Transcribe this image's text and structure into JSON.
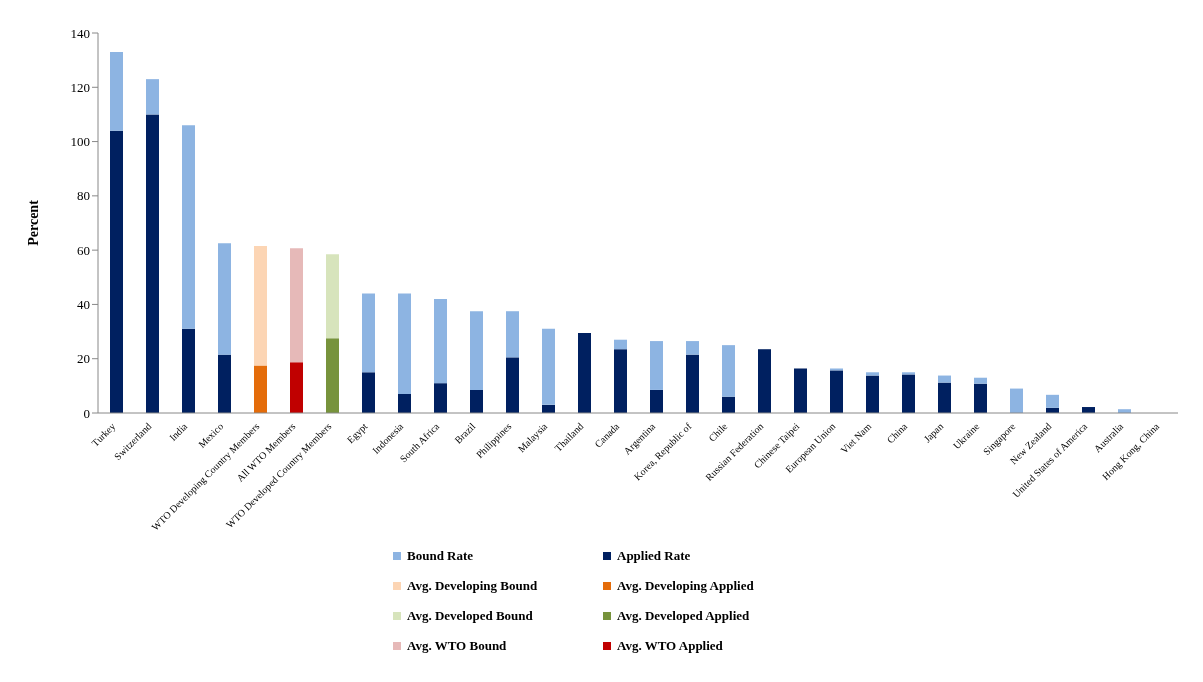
{
  "chart_data": {
    "type": "bar",
    "stacked": true,
    "ylabel": "Percent",
    "ylim": [
      0,
      140
    ],
    "yticks": [
      0,
      20,
      40,
      60,
      80,
      100,
      120,
      140
    ],
    "grid": false,
    "legend": "bottom",
    "categories": [
      "Turkey",
      "Switzerland",
      "India",
      "Mexico",
      "WTO Developing Country Members",
      "All WTO Members",
      "WTO Developed Country Members",
      "Egypt",
      "Indonesia",
      "South Africa",
      "Brazil",
      "Philippines",
      "Malaysia",
      "Thailand",
      "Canada",
      "Argentina",
      "Korea, Republic of",
      "Chile",
      "Russian Federation",
      "Chinese Taipei",
      "European Union",
      "Viet Nam",
      "China",
      "Japan",
      "Ukraine",
      "Singapore",
      "New Zealand",
      "United States of America",
      "Australia",
      "Hong Kong, China"
    ],
    "series": [
      {
        "name": "Applied Rate",
        "color": "#002060",
        "values": [
          104,
          110,
          31,
          21.5,
          null,
          null,
          null,
          15,
          7,
          11,
          8.5,
          20.5,
          3,
          29.5,
          23.5,
          8.5,
          21.5,
          6,
          23.5,
          16.4,
          15.7,
          13.8,
          14.2,
          11.2,
          10.8,
          0,
          1.9,
          2.2,
          0,
          0
        ]
      },
      {
        "name": "Bound Rate",
        "color": "#8db4e2",
        "values": [
          29,
          13,
          75,
          41,
          null,
          null,
          null,
          29,
          37,
          31,
          29,
          17,
          28,
          0,
          3.5,
          18,
          5,
          19,
          0,
          0,
          0.7,
          1.2,
          0.8,
          2.6,
          2.2,
          9,
          4.8,
          0,
          1.4,
          0
        ]
      },
      {
        "name": "Avg. Developing Applied",
        "color": "#e46c0a",
        "values": [
          null,
          null,
          null,
          null,
          17.5,
          null,
          null,
          null,
          null,
          null,
          null,
          null,
          null,
          null,
          null,
          null,
          null,
          null,
          null,
          null,
          null,
          null,
          null,
          null,
          null,
          null,
          null,
          null,
          null,
          null
        ]
      },
      {
        "name": "Avg. Developing Bound",
        "color": "#fcd5b4",
        "values": [
          null,
          null,
          null,
          null,
          44,
          null,
          null,
          null,
          null,
          null,
          null,
          null,
          null,
          null,
          null,
          null,
          null,
          null,
          null,
          null,
          null,
          null,
          null,
          null,
          null,
          null,
          null,
          null,
          null,
          null
        ]
      },
      {
        "name": "Avg. Developed Applied",
        "color": "#77933c",
        "values": [
          null,
          null,
          null,
          null,
          null,
          null,
          27.5,
          null,
          null,
          null,
          null,
          null,
          null,
          null,
          null,
          null,
          null,
          null,
          null,
          null,
          null,
          null,
          null,
          null,
          null,
          null,
          null,
          null,
          null,
          null
        ]
      },
      {
        "name": "Avg. Developed Bound",
        "color": "#d7e4bc",
        "values": [
          null,
          null,
          null,
          null,
          null,
          null,
          31,
          null,
          null,
          null,
          null,
          null,
          null,
          null,
          null,
          null,
          null,
          null,
          null,
          null,
          null,
          null,
          null,
          null,
          null,
          null,
          null,
          null,
          null,
          null
        ]
      },
      {
        "name": "Avg. WTO Applied",
        "color": "#c00000",
        "values": [
          null,
          null,
          null,
          null,
          null,
          18.7,
          null,
          null,
          null,
          null,
          null,
          null,
          null,
          null,
          null,
          null,
          null,
          null,
          null,
          null,
          null,
          null,
          null,
          null,
          null,
          null,
          null,
          null,
          null,
          null
        ]
      },
      {
        "name": "Avg. WTO Bound",
        "color": "#e6b9b8",
        "values": [
          null,
          null,
          null,
          null,
          null,
          42,
          null,
          null,
          null,
          null,
          null,
          null,
          null,
          null,
          null,
          null,
          null,
          null,
          null,
          null,
          null,
          null,
          null,
          null,
          null,
          null,
          null,
          null,
          null,
          null
        ]
      }
    ]
  }
}
